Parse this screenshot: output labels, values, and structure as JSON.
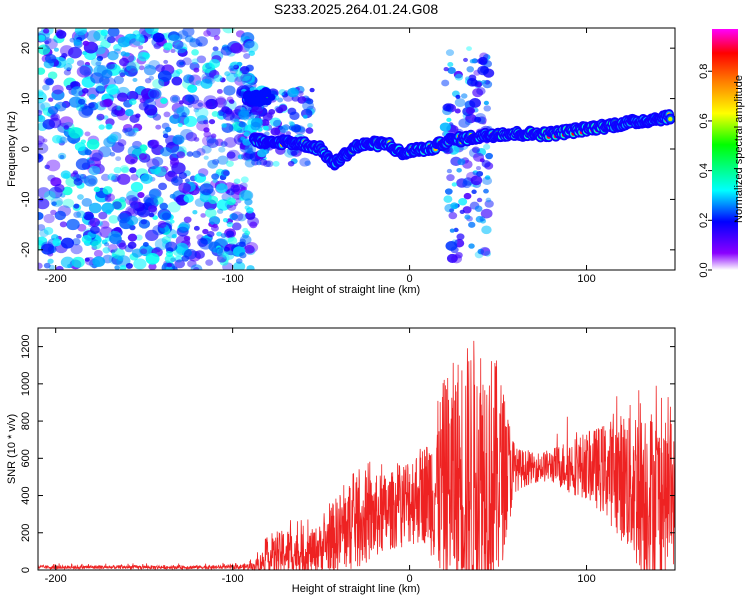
{
  "title": "S233.2025.264.01.24.G08",
  "colors": {
    "snr_line": "#ee2222",
    "background": "#ffffff",
    "frame": "#000000"
  },
  "chart_data": [
    {
      "type": "heatmap",
      "name": "spectrogram",
      "xlabel": "Height of straight line (km)",
      "ylabel": "Frequency (Hz)",
      "xlim": [
        -210,
        150
      ],
      "ylim": [
        -24,
        24
      ],
      "xticks": [
        -200,
        -100,
        0,
        100
      ],
      "yticks": [
        -20,
        -10,
        0,
        10,
        20
      ],
      "xtick_labels": [
        "-200",
        "-100",
        "0",
        "100"
      ],
      "ytick_labels": [
        "-20",
        "-10",
        "0",
        "10",
        "20"
      ],
      "noise_region": {
        "x": [
          -210,
          -88
        ],
        "y": [
          -24,
          24
        ],
        "amplitude": [
          0.1,
          0.35
        ]
      },
      "ridge": [
        {
          "x": -92,
          "y": 10
        },
        {
          "x": -86,
          "y": 10
        },
        {
          "x": -80,
          "y": 11
        },
        {
          "x": -88,
          "y": 2
        },
        {
          "x": -80,
          "y": 1
        },
        {
          "x": -70,
          "y": 1.5
        },
        {
          "x": -60,
          "y": 1
        },
        {
          "x": -50,
          "y": 0
        },
        {
          "x": -43,
          "y": -3
        },
        {
          "x": -36,
          "y": -1
        },
        {
          "x": -30,
          "y": 0.5
        },
        {
          "x": -22,
          "y": 1
        },
        {
          "x": -12,
          "y": 1
        },
        {
          "x": -4,
          "y": -1
        },
        {
          "x": 4,
          "y": 0
        },
        {
          "x": 12,
          "y": 0
        },
        {
          "x": 20,
          "y": 1.5
        },
        {
          "x": 30,
          "y": 2
        },
        {
          "x": 40,
          "y": 2.5
        },
        {
          "x": 50,
          "y": 3
        },
        {
          "x": 60,
          "y": 3
        },
        {
          "x": 70,
          "y": 3
        },
        {
          "x": 80,
          "y": 3
        },
        {
          "x": 90,
          "y": 3.5
        },
        {
          "x": 100,
          "y": 4
        },
        {
          "x": 110,
          "y": 4.5
        },
        {
          "x": 120,
          "y": 5
        },
        {
          "x": 130,
          "y": 5.5
        },
        {
          "x": 140,
          "y": 6
        },
        {
          "x": 148,
          "y": 6.5
        }
      ],
      "ridge_peak_amplitude": 0.9,
      "scatter_bands": [
        {
          "x": [
            20,
            45
          ],
          "y": [
            -22,
            20
          ]
        },
        {
          "x": [
            -95,
            -55
          ],
          "y": [
            -3,
            12
          ]
        }
      ],
      "colorbar": {
        "label": "Normalized spectral amplitude",
        "range": [
          0,
          0.97
        ],
        "ticks": [
          0.0,
          0.2,
          0.4,
          0.6,
          0.8
        ],
        "tick_labels": [
          "0.0",
          "0.2",
          "0.4",
          "0.6",
          "0.8"
        ],
        "colormap": [
          "#ffffff",
          "#8a00ff",
          "#0000ff",
          "#00ffff",
          "#00ff00",
          "#ffff00",
          "#ff8000",
          "#ff0000",
          "#ff00ff"
        ]
      }
    },
    {
      "type": "line",
      "name": "snr",
      "xlabel": "Height of straight line (km)",
      "ylabel": "SNR (10 * v/v)",
      "xlim": [
        -210,
        150
      ],
      "ylim": [
        0,
        1300
      ],
      "xticks": [
        -200,
        -100,
        0,
        100
      ],
      "yticks": [
        0,
        200,
        400,
        600,
        800,
        1000,
        1200
      ],
      "xtick_labels": [
        "-200",
        "-100",
        "0",
        "100"
      ],
      "ytick_labels": [
        "0",
        "200",
        "400",
        "600",
        "800",
        "1000",
        "1200"
      ],
      "envelope": {
        "x": [
          -210,
          -100,
          -88,
          -80,
          -70,
          -60,
          -50,
          -40,
          -30,
          -20,
          -10,
          0,
          10,
          20,
          30,
          40,
          45,
          50,
          60,
          70,
          80,
          90,
          100,
          110,
          120,
          130,
          140,
          150
        ],
        "base": [
          15,
          15,
          20,
          60,
          100,
          80,
          120,
          200,
          250,
          280,
          320,
          380,
          420,
          450,
          500,
          500,
          500,
          520,
          540,
          550,
          560,
          560,
          560,
          540,
          500,
          450,
          400,
          380
        ],
        "amp": [
          10,
          10,
          20,
          90,
          130,
          110,
          130,
          220,
          250,
          230,
          210,
          250,
          280,
          600,
          700,
          800,
          700,
          600,
          120,
          80,
          90,
          150,
          180,
          250,
          350,
          500,
          450,
          350
        ],
        "peak": [
          35,
          40,
          60,
          200,
          300,
          280,
          300,
          450,
          570,
          600,
          550,
          660,
          600,
          1000,
          1150,
          1200,
          1280,
          1180,
          700,
          620,
          660,
          900,
          850,
          900,
          1000,
          1100,
          1000,
          900
        ]
      }
    }
  ]
}
